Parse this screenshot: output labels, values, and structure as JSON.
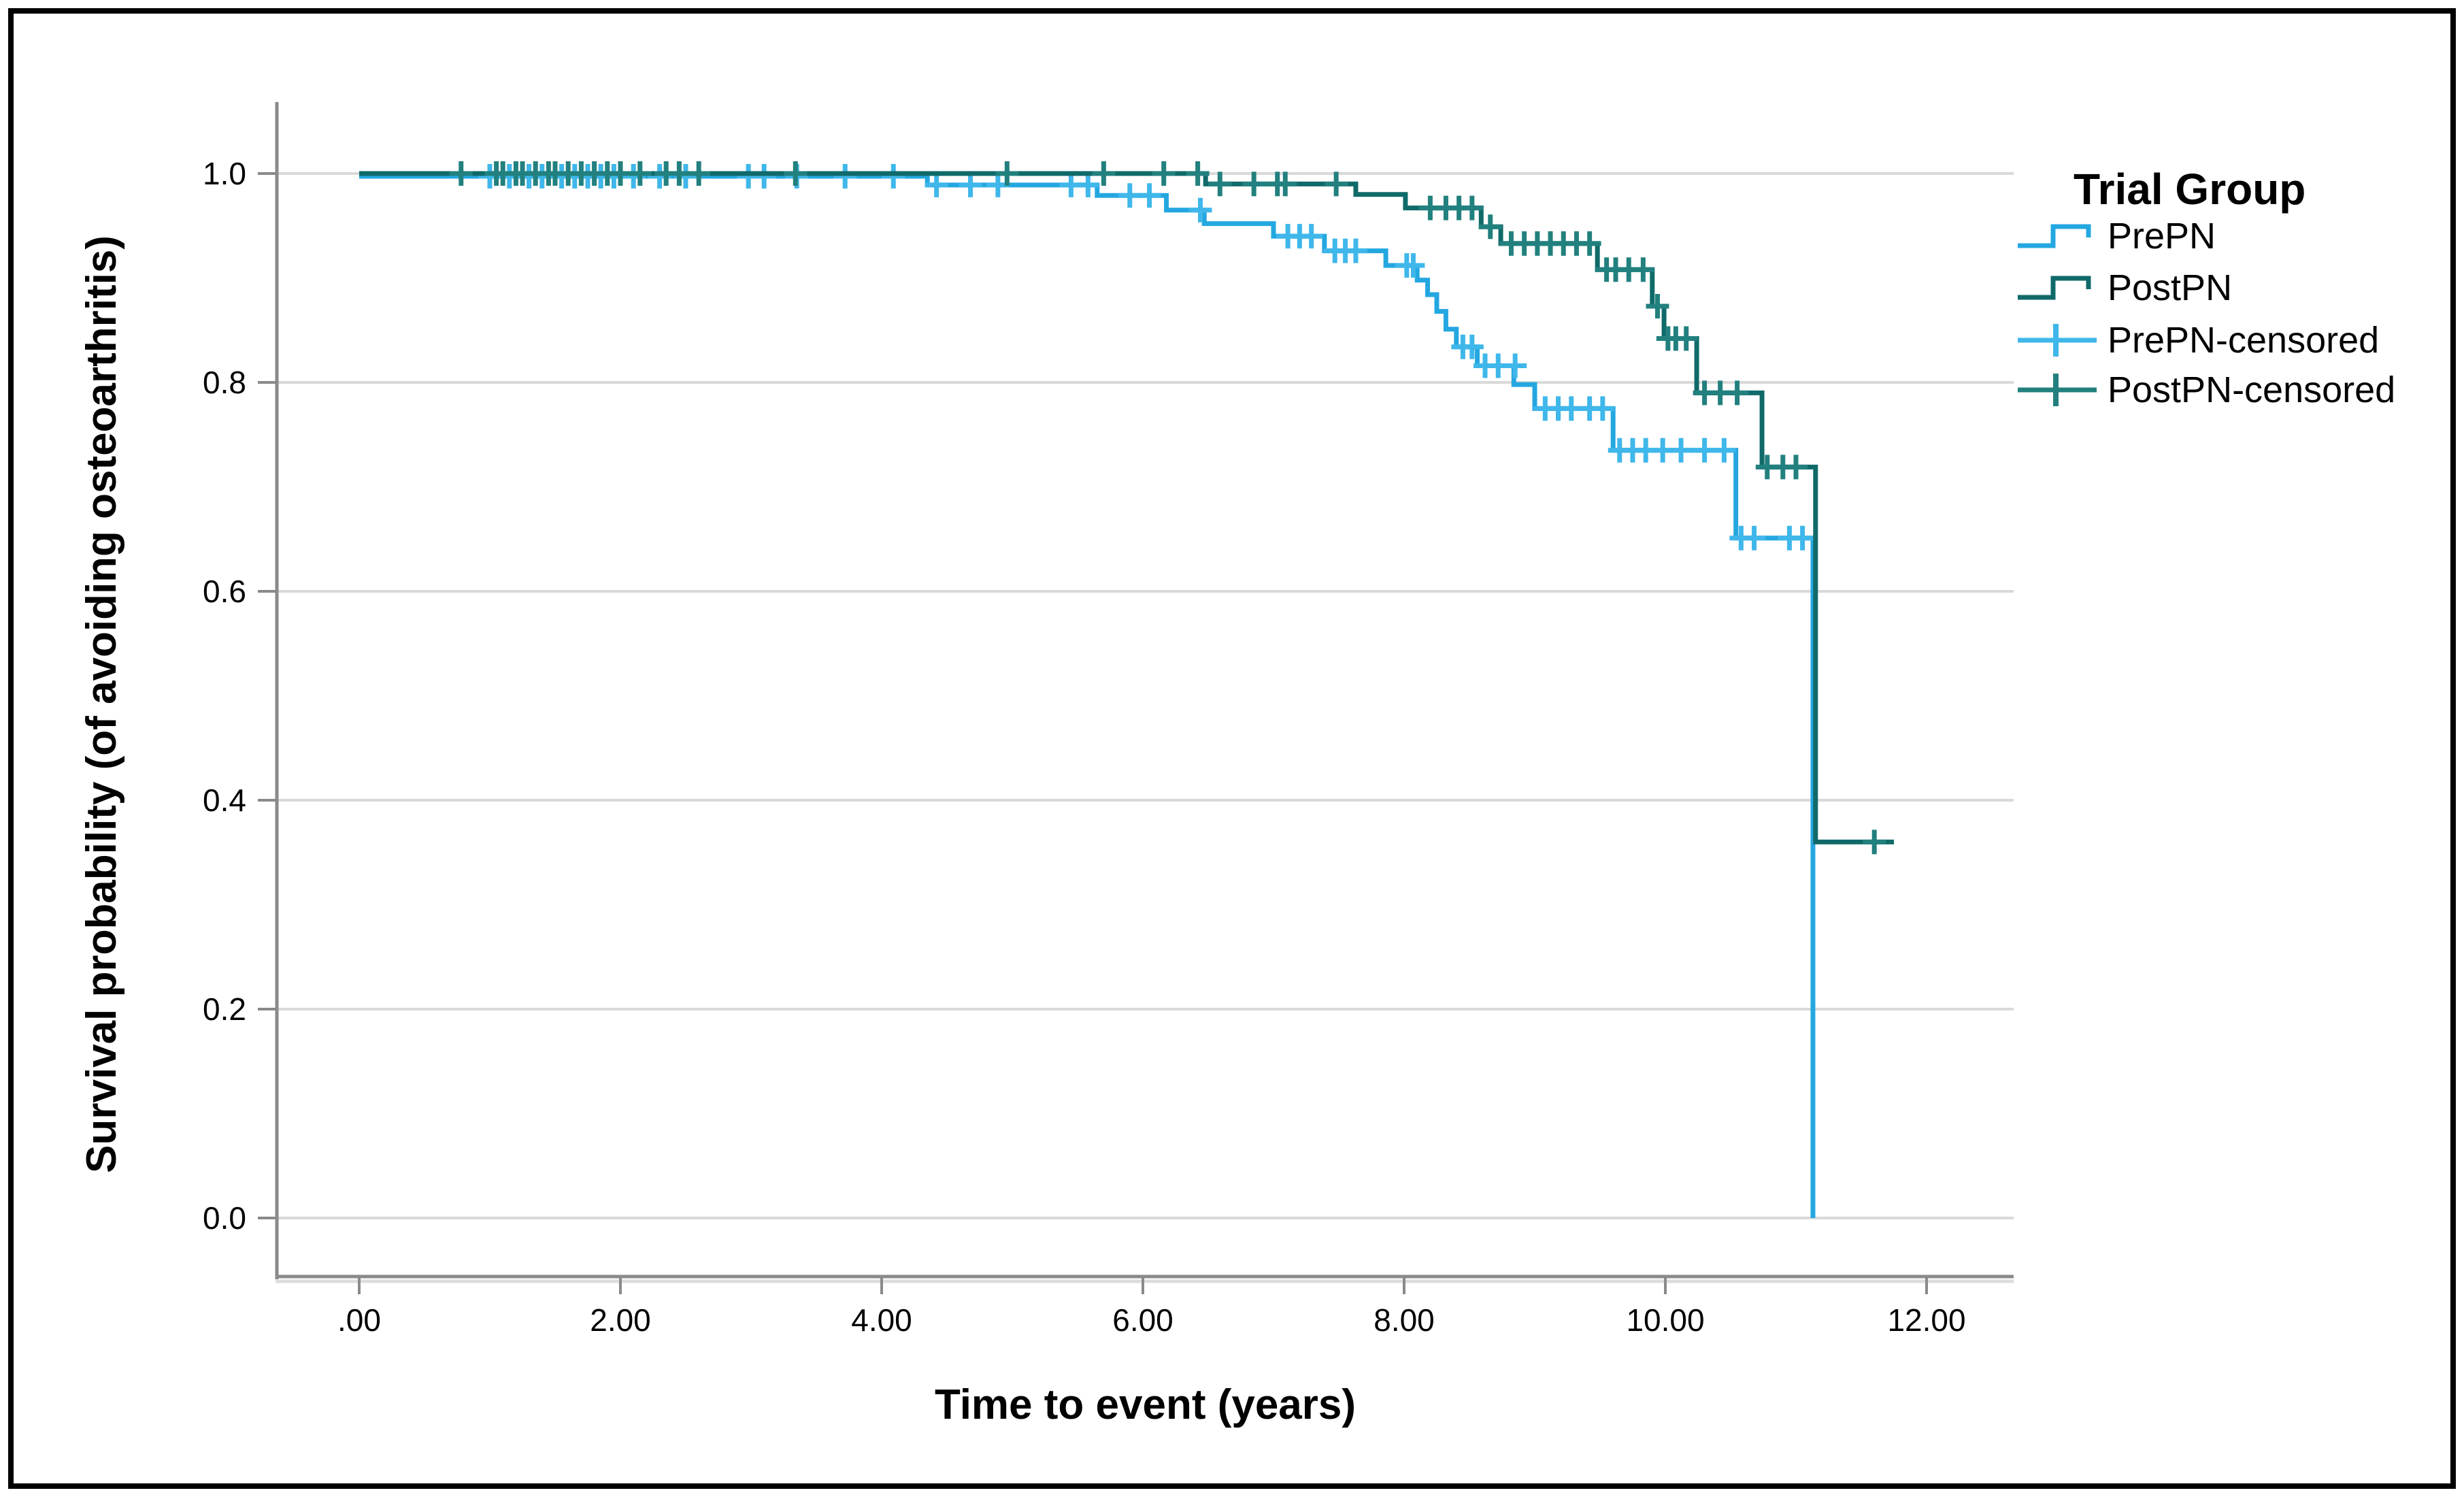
{
  "figure": {
    "background": "#ffffff",
    "border_color": "#000000",
    "grid_color": "#d9d9d9",
    "axis_color": "#8a8a8a",
    "axis_shadow_color": "#dcdcdc"
  },
  "chart_data": {
    "type": "line",
    "subtype": "kaplan-meier-step",
    "title": "",
    "xlabel": "Time to event (years)",
    "ylabel": "Survival probability (of avoiding osteoarthritis)",
    "x_ticks": [
      {
        "value": 0,
        "label": ".00"
      },
      {
        "value": 2,
        "label": "2.00"
      },
      {
        "value": 4,
        "label": "4.00"
      },
      {
        "value": 6,
        "label": "6.00"
      },
      {
        "value": 8,
        "label": "8.00"
      },
      {
        "value": 10,
        "label": "10.00"
      },
      {
        "value": 12,
        "label": "12.00"
      }
    ],
    "y_ticks": [
      {
        "value": 1.0,
        "label": "1.0"
      },
      {
        "value": 0.8,
        "label": "0.8"
      },
      {
        "value": 0.6,
        "label": "0.6"
      },
      {
        "value": 0.4,
        "label": "0.4"
      },
      {
        "value": 0.2,
        "label": "0.2"
      },
      {
        "value": 0.0,
        "label": "0.0"
      }
    ],
    "xlim": [
      -0.63,
      12.67
    ],
    "ylim": [
      -0.056,
      1.068
    ],
    "grid": "horizontal-only",
    "legend": {
      "title": "Trial Group",
      "position": "right",
      "entries": [
        {
          "label": "PrePN",
          "glyph": "step",
          "color": "#24a7e0"
        },
        {
          "label": "PostPN",
          "glyph": "step",
          "color": "#0f6a69"
        },
        {
          "label": "PrePN-censored",
          "glyph": "censor",
          "color": "#3fb7ea"
        },
        {
          "label": "PostPN-censored",
          "glyph": "censor",
          "color": "#22807e"
        }
      ]
    },
    "series": [
      {
        "name": "PrePN",
        "color": "#24a7e0",
        "censor_color": "#3fb7ea",
        "end_time": 11.13,
        "steps": [
          [
            0,
            1.0
          ],
          [
            4.35,
            0.989
          ],
          [
            5.65,
            0.979
          ],
          [
            6.18,
            0.965
          ],
          [
            6.47,
            0.952
          ],
          [
            7.0,
            0.94
          ],
          [
            7.39,
            0.926
          ],
          [
            7.86,
            0.912
          ],
          [
            8.1,
            0.898
          ],
          [
            8.18,
            0.884
          ],
          [
            8.25,
            0.868
          ],
          [
            8.32,
            0.851
          ],
          [
            8.4,
            0.834
          ],
          [
            8.56,
            0.816
          ],
          [
            8.84,
            0.798
          ],
          [
            9.0,
            0.775
          ],
          [
            9.6,
            0.735
          ],
          [
            10.54,
            0.651
          ],
          [
            11.13,
            0.0
          ]
        ],
        "censors": [
          [
            1.0,
            1.0
          ],
          [
            1.15,
            1.0
          ],
          [
            1.3,
            1.0
          ],
          [
            1.4,
            1.0
          ],
          [
            1.55,
            1.0
          ],
          [
            1.65,
            1.0
          ],
          [
            1.75,
            1.0
          ],
          [
            1.85,
            1.0
          ],
          [
            1.95,
            1.0
          ],
          [
            2.1,
            1.0
          ],
          [
            2.3,
            1.0
          ],
          [
            2.5,
            1.0
          ],
          [
            2.98,
            1.0
          ],
          [
            3.1,
            1.0
          ],
          [
            3.35,
            1.0
          ],
          [
            3.72,
            1.0
          ],
          [
            4.09,
            1.0
          ],
          [
            4.42,
            0.989
          ],
          [
            4.68,
            0.989
          ],
          [
            4.89,
            0.989
          ],
          [
            5.45,
            0.989
          ],
          [
            5.58,
            0.989
          ],
          [
            5.9,
            0.979
          ],
          [
            6.05,
            0.979
          ],
          [
            6.44,
            0.965
          ],
          [
            7.11,
            0.94
          ],
          [
            7.2,
            0.94
          ],
          [
            7.29,
            0.94
          ],
          [
            7.47,
            0.926
          ],
          [
            7.55,
            0.926
          ],
          [
            7.63,
            0.926
          ],
          [
            8.02,
            0.912
          ],
          [
            8.07,
            0.912
          ],
          [
            8.45,
            0.834
          ],
          [
            8.52,
            0.834
          ],
          [
            8.62,
            0.816
          ],
          [
            8.72,
            0.816
          ],
          [
            8.85,
            0.816
          ],
          [
            9.08,
            0.775
          ],
          [
            9.18,
            0.775
          ],
          [
            9.28,
            0.775
          ],
          [
            9.42,
            0.775
          ],
          [
            9.52,
            0.775
          ],
          [
            9.65,
            0.735
          ],
          [
            9.75,
            0.735
          ],
          [
            9.85,
            0.735
          ],
          [
            9.98,
            0.735
          ],
          [
            10.12,
            0.735
          ],
          [
            10.3,
            0.735
          ],
          [
            10.45,
            0.735
          ],
          [
            10.58,
            0.651
          ],
          [
            10.68,
            0.651
          ],
          [
            10.95,
            0.651
          ],
          [
            11.05,
            0.651
          ]
        ]
      },
      {
        "name": "PostPN",
        "color": "#0f6a69",
        "censor_color": "#22807e",
        "end_time": 11.75,
        "steps": [
          [
            0,
            1.0
          ],
          [
            6.48,
            0.99
          ],
          [
            7.63,
            0.98
          ],
          [
            8.01,
            0.967
          ],
          [
            8.59,
            0.949
          ],
          [
            8.74,
            0.933
          ],
          [
            9.48,
            0.908
          ],
          [
            9.9,
            0.873
          ],
          [
            9.99,
            0.842
          ],
          [
            10.24,
            0.79
          ],
          [
            10.74,
            0.719
          ],
          [
            11.15,
            0.36
          ]
        ],
        "censors": [
          [
            0.78,
            1.0
          ],
          [
            1.05,
            1.0
          ],
          [
            1.1,
            1.0
          ],
          [
            1.2,
            1.0
          ],
          [
            1.25,
            1.0
          ],
          [
            1.35,
            1.0
          ],
          [
            1.45,
            1.0
          ],
          [
            1.5,
            1.0
          ],
          [
            1.6,
            1.0
          ],
          [
            1.7,
            1.0
          ],
          [
            1.8,
            1.0
          ],
          [
            1.9,
            1.0
          ],
          [
            2.0,
            1.0
          ],
          [
            2.15,
            1.0
          ],
          [
            2.35,
            1.0
          ],
          [
            2.45,
            1.0
          ],
          [
            2.6,
            1.0
          ],
          [
            3.34,
            1.0
          ],
          [
            4.96,
            1.0
          ],
          [
            5.7,
            1.0
          ],
          [
            6.16,
            1.0
          ],
          [
            6.42,
            1.0
          ],
          [
            6.59,
            0.99
          ],
          [
            6.85,
            0.99
          ],
          [
            7.03,
            0.99
          ],
          [
            7.09,
            0.99
          ],
          [
            7.48,
            0.99
          ],
          [
            8.2,
            0.967
          ],
          [
            8.32,
            0.967
          ],
          [
            8.42,
            0.967
          ],
          [
            8.52,
            0.967
          ],
          [
            8.66,
            0.949
          ],
          [
            8.82,
            0.933
          ],
          [
            8.92,
            0.933
          ],
          [
            9.02,
            0.933
          ],
          [
            9.12,
            0.933
          ],
          [
            9.22,
            0.933
          ],
          [
            9.32,
            0.933
          ],
          [
            9.42,
            0.933
          ],
          [
            9.55,
            0.908
          ],
          [
            9.62,
            0.908
          ],
          [
            9.72,
            0.908
          ],
          [
            9.83,
            0.908
          ],
          [
            9.94,
            0.873
          ],
          [
            10.02,
            0.842
          ],
          [
            10.08,
            0.842
          ],
          [
            10.16,
            0.842
          ],
          [
            10.3,
            0.79
          ],
          [
            10.42,
            0.79
          ],
          [
            10.55,
            0.79
          ],
          [
            10.78,
            0.719
          ],
          [
            10.9,
            0.719
          ],
          [
            11.0,
            0.719
          ],
          [
            11.6,
            0.36
          ]
        ]
      }
    ]
  }
}
